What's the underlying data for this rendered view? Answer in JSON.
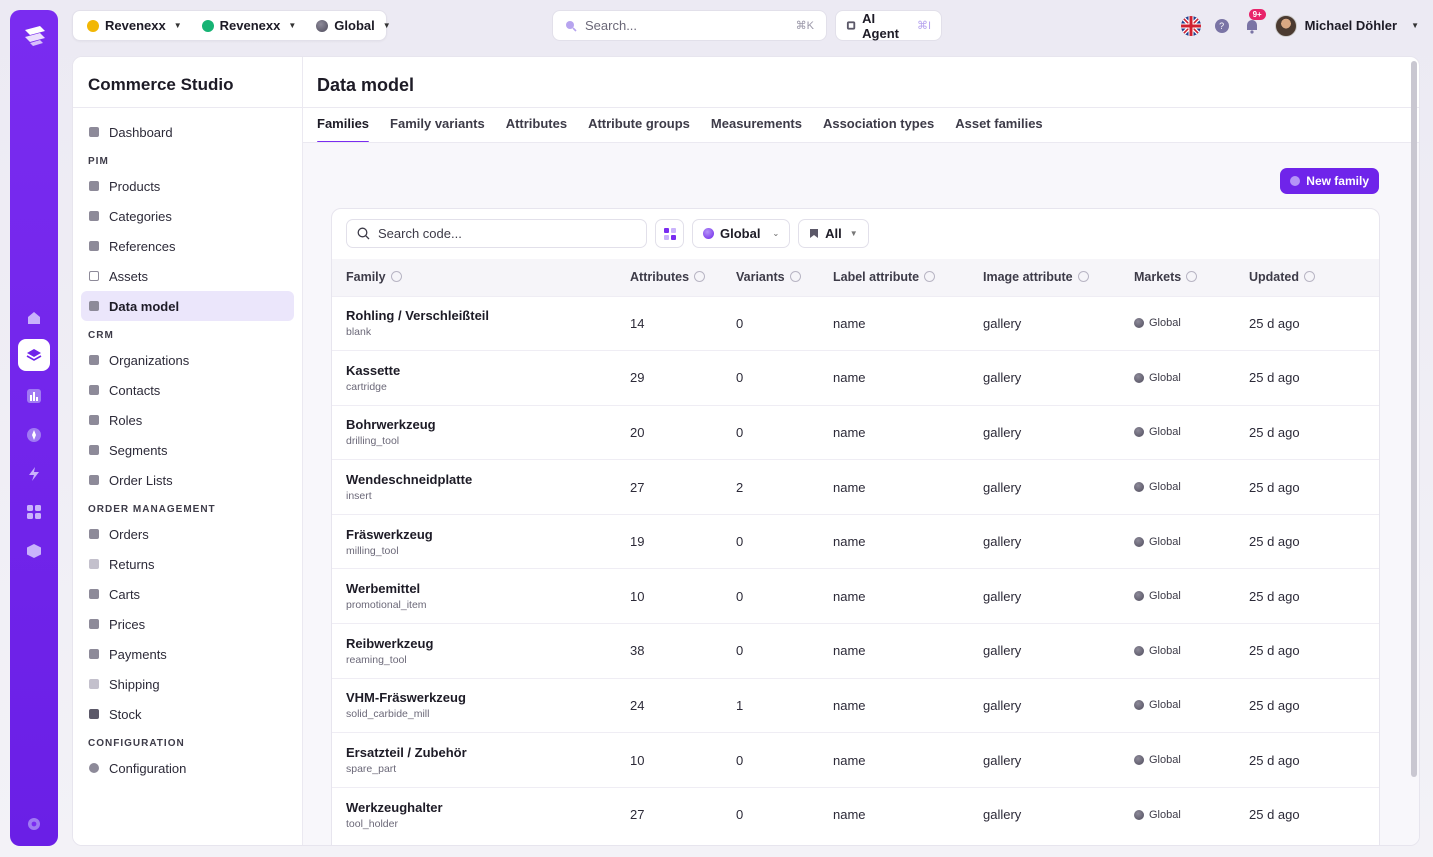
{
  "topbar": {
    "ctx": [
      {
        "label": "Revenexx",
        "color": "#f2b705"
      },
      {
        "label": "Revenexx",
        "color": "#16b374"
      },
      {
        "label": "Global",
        "color": "#5b5868"
      }
    ],
    "search_placeholder": "Search...",
    "search_kbd": "⌘K",
    "ai_label": "AI Agent",
    "ai_kbd": "⌘I",
    "notif_badge": "9+",
    "user_name": "Michael Döhler"
  },
  "sidebar": {
    "title": "Commerce Studio",
    "dashboard": "Dashboard",
    "sections": [
      {
        "title": "PIM",
        "items": [
          "Products",
          "Categories",
          "References",
          "Assets",
          "Data model"
        ]
      },
      {
        "title": "CRM",
        "items": [
          "Organizations",
          "Contacts",
          "Roles",
          "Segments",
          "Order Lists"
        ]
      },
      {
        "title": "ORDER MANAGEMENT",
        "items": [
          "Orders",
          "Returns",
          "Carts",
          "Prices",
          "Payments",
          "Shipping",
          "Stock"
        ]
      },
      {
        "title": "CONFIGURATION",
        "items": [
          "Configuration"
        ]
      }
    ],
    "active": "Data model"
  },
  "main": {
    "title": "Data model",
    "tabs": [
      "Families",
      "Family variants",
      "Attributes",
      "Attribute groups",
      "Measurements",
      "Association types",
      "Asset families"
    ],
    "active_tab": "Families",
    "new_button": "New family",
    "search_placeholder": "Search code...",
    "market_filter": "Global",
    "type_filter": "All",
    "columns": [
      "Family",
      "Attributes",
      "Variants",
      "Label attribute",
      "Image attribute",
      "Markets",
      "Updated"
    ],
    "rows": [
      {
        "name": "Rohling / Verschleißteil",
        "code": "blank",
        "attributes": "14",
        "variants": "0",
        "label": "name",
        "image": "gallery",
        "market": "Global",
        "updated": "25 d ago"
      },
      {
        "name": "Kassette",
        "code": "cartridge",
        "attributes": "29",
        "variants": "0",
        "label": "name",
        "image": "gallery",
        "market": "Global",
        "updated": "25 d ago"
      },
      {
        "name": "Bohrwerkzeug",
        "code": "drilling_tool",
        "attributes": "20",
        "variants": "0",
        "label": "name",
        "image": "gallery",
        "market": "Global",
        "updated": "25 d ago"
      },
      {
        "name": "Wendeschneidplatte",
        "code": "insert",
        "attributes": "27",
        "variants": "2",
        "label": "name",
        "image": "gallery",
        "market": "Global",
        "updated": "25 d ago"
      },
      {
        "name": "Fräswerkzeug",
        "code": "milling_tool",
        "attributes": "19",
        "variants": "0",
        "label": "name",
        "image": "gallery",
        "market": "Global",
        "updated": "25 d ago"
      },
      {
        "name": "Werbemittel",
        "code": "promotional_item",
        "attributes": "10",
        "variants": "0",
        "label": "name",
        "image": "gallery",
        "market": "Global",
        "updated": "25 d ago"
      },
      {
        "name": "Reibwerkzeug",
        "code": "reaming_tool",
        "attributes": "38",
        "variants": "0",
        "label": "name",
        "image": "gallery",
        "market": "Global",
        "updated": "25 d ago"
      },
      {
        "name": "VHM-Fräswerkzeug",
        "code": "solid_carbide_mill",
        "attributes": "24",
        "variants": "1",
        "label": "name",
        "image": "gallery",
        "market": "Global",
        "updated": "25 d ago"
      },
      {
        "name": "Ersatzteil / Zubehör",
        "code": "spare_part",
        "attributes": "10",
        "variants": "0",
        "label": "name",
        "image": "gallery",
        "market": "Global",
        "updated": "25 d ago"
      },
      {
        "name": "Werkzeughalter",
        "code": "tool_holder",
        "attributes": "27",
        "variants": "0",
        "label": "name",
        "image": "gallery",
        "market": "Global",
        "updated": "25 d ago"
      }
    ]
  },
  "colors": {
    "accent": "#6f24ea",
    "rail": "#7a2cf0"
  }
}
